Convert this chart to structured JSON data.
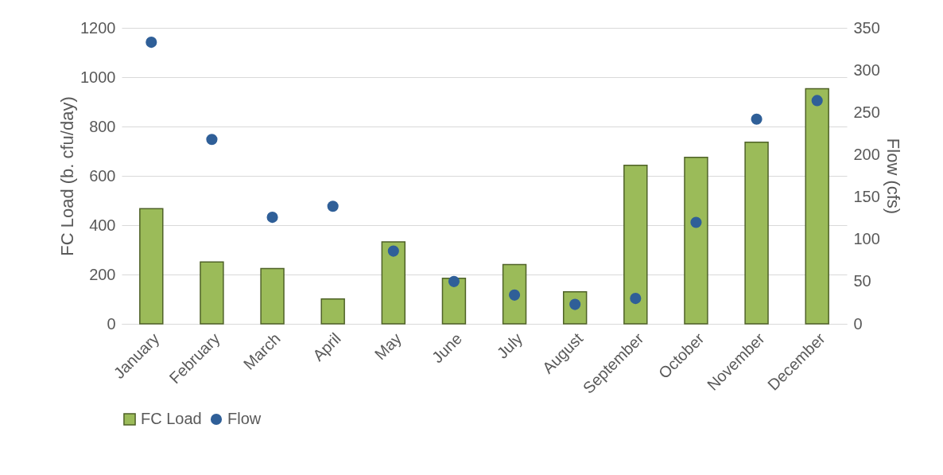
{
  "chart_data": {
    "type": "bar",
    "categories": [
      "January",
      "February",
      "March",
      "April",
      "May",
      "June",
      "July",
      "August",
      "September",
      "October",
      "November",
      "December"
    ],
    "ylabel": "FC Load (b. cfu/day)",
    "y2label": "Flow (cfs)",
    "series": [
      {
        "name": "FC Load",
        "color": "#9bbb59",
        "values": [
          467,
          251,
          224,
          101,
          332,
          185,
          240,
          130,
          643,
          675,
          736,
          953
        ]
      },
      {
        "name": "Flow",
        "type": "scatter",
        "axis": "y2",
        "color": "#2f5f98",
        "values": [
          333,
          218,
          126,
          139,
          86,
          50,
          34,
          23,
          30,
          120,
          242,
          264
        ]
      }
    ],
    "ylim": [
      0,
      1200
    ],
    "yticks": [
      0,
      200,
      400,
      600,
      800,
      1000,
      1200
    ],
    "y2lim": [
      0,
      350
    ],
    "y2ticks": [
      0,
      50,
      100,
      150,
      200,
      250,
      300,
      350
    ],
    "grid": "y",
    "legend": "bottom",
    "marker": "circle"
  }
}
